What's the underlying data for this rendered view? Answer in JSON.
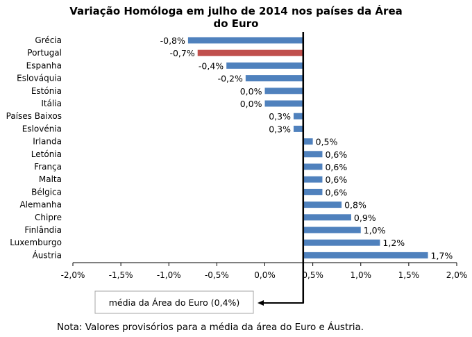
{
  "chart_data": {
    "type": "bar",
    "orientation": "horizontal",
    "title_lines": [
      "Variação Homóloga em julho de 2014 nos países da Área",
      "do Euro"
    ],
    "categories": [
      "Grécia",
      "Portugal",
      "Espanha",
      "Eslováquia",
      "Estónia",
      "Itália",
      "Países Baixos",
      "Eslovénia",
      "Irlanda",
      "Letónia",
      "França",
      "Malta",
      "Bélgica",
      "Alemanha",
      "Chipre",
      "Finlândia",
      "Luxemburgo",
      "Áustria"
    ],
    "values": [
      -0.8,
      -0.7,
      -0.4,
      -0.2,
      0.0,
      0.0,
      0.3,
      0.3,
      0.5,
      0.6,
      0.6,
      0.6,
      0.6,
      0.8,
      0.9,
      1.0,
      1.2,
      1.7
    ],
    "data_labels": [
      "-0,8%",
      "-0,7%",
      "-0,4%",
      "-0,2%",
      "0,0%",
      "0,0%",
      "0,3%",
      "0,3%",
      "0,5%",
      "0,6%",
      "0,6%",
      "0,6%",
      "0,6%",
      "0,8%",
      "0,9%",
      "1,0%",
      "1,2%",
      "1,7%"
    ],
    "highlight": "Portugal",
    "colors": {
      "bar": "#4f81bd",
      "highlight": "#c0504d",
      "axis": "#000000"
    },
    "xlim": [
      -2.0,
      2.0
    ],
    "xticks": [
      -2.0,
      -1.5,
      -1.0,
      -0.5,
      0.0,
      0.5,
      1.0,
      1.5,
      2.0
    ],
    "xtick_labels": [
      "-2,0%",
      "-1,5%",
      "-1,0%",
      "-0,5%",
      "0,0%",
      "0,5%",
      "1,0%",
      "1,5%",
      "2,0%"
    ],
    "baseline": 0.4,
    "baseline_label": "média da Área do Euro (0,4%)",
    "grid": false,
    "legend": "none"
  },
  "note": "Nota: Valores provisórios para a média da área do Euro e Áustria."
}
